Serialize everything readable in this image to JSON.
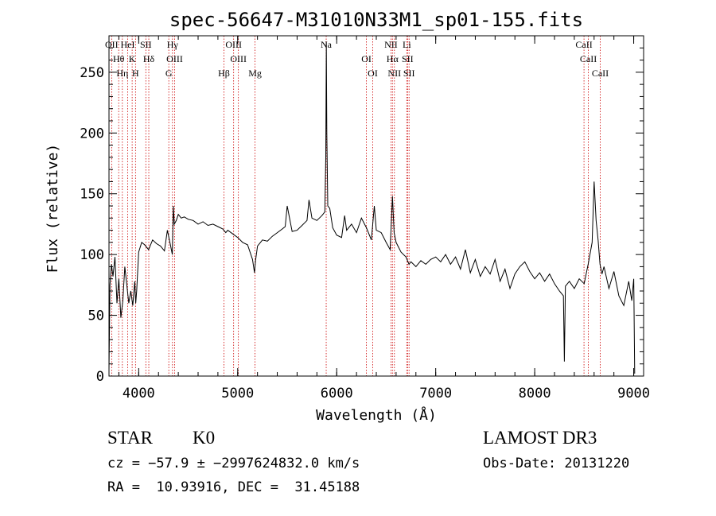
{
  "colors": {
    "spectrum": "#000000",
    "line_marker": "#cc0000",
    "axis": "#000000"
  },
  "chart_data": {
    "type": "line",
    "title": "spec-56647-M31010N33M1_sp01-155.fits",
    "xlabel": "Wavelength (Å)",
    "ylabel": "Flux (relative)",
    "xlim": [
      3700,
      9100
    ],
    "ylim": [
      0,
      280
    ],
    "x_ticks": [
      4000,
      5000,
      6000,
      7000,
      8000,
      9000
    ],
    "y_ticks": [
      0,
      50,
      100,
      150,
      200,
      250
    ],
    "series": [
      {
        "name": "flux",
        "x": [
          3700,
          3710,
          3725,
          3740,
          3760,
          3780,
          3800,
          3820,
          3840,
          3860,
          3880,
          3900,
          3920,
          3940,
          3960,
          3970,
          3980,
          4000,
          4030,
          4060,
          4100,
          4140,
          4180,
          4220,
          4260,
          4290,
          4320,
          4340,
          4350,
          4360,
          4380,
          4400,
          4430,
          4460,
          4500,
          4550,
          4600,
          4650,
          4700,
          4750,
          4800,
          4850,
          4880,
          4900,
          4950,
          5000,
          5050,
          5100,
          5150,
          5170,
          5180,
          5200,
          5250,
          5300,
          5350,
          5400,
          5450,
          5480,
          5500,
          5550,
          5600,
          5650,
          5700,
          5720,
          5750,
          5800,
          5850,
          5880,
          5890,
          5895,
          5900,
          5910,
          5930,
          5960,
          6000,
          6050,
          6080,
          6100,
          6150,
          6200,
          6250,
          6300,
          6350,
          6380,
          6400,
          6450,
          6500,
          6540,
          6563,
          6580,
          6600,
          6650,
          6700,
          6730,
          6750,
          6800,
          6850,
          6900,
          6950,
          7000,
          7050,
          7100,
          7150,
          7200,
          7250,
          7300,
          7350,
          7400,
          7450,
          7500,
          7550,
          7600,
          7650,
          7700,
          7750,
          7800,
          7850,
          7900,
          7950,
          8000,
          8050,
          8100,
          8150,
          8200,
          8250,
          8290,
          8300,
          8310,
          8350,
          8400,
          8450,
          8500,
          8540,
          8580,
          8600,
          8620,
          8640,
          8660,
          8680,
          8700,
          8750,
          8800,
          8850,
          8900,
          8950,
          8980,
          9000,
          9010
        ],
        "values": [
          5,
          75,
          92,
          82,
          98,
          60,
          80,
          48,
          62,
          90,
          75,
          60,
          70,
          58,
          78,
          60,
          70,
          102,
          110,
          108,
          104,
          112,
          109,
          107,
          103,
          120,
          108,
          100,
          140,
          125,
          128,
          133,
          130,
          131,
          129,
          128,
          125,
          127,
          124,
          125,
          123,
          121,
          118,
          120,
          117,
          114,
          110,
          108,
          96,
          85,
          95,
          107,
          112,
          111,
          115,
          118,
          121,
          123,
          140,
          119,
          120,
          124,
          128,
          145,
          130,
          128,
          132,
          135,
          180,
          275,
          200,
          140,
          138,
          122,
          116,
          114,
          132,
          120,
          125,
          118,
          130,
          122,
          112,
          140,
          120,
          118,
          110,
          104,
          148,
          118,
          110,
          102,
          98,
          92,
          94,
          90,
          95,
          92,
          96,
          98,
          94,
          100,
          92,
          98,
          88,
          104,
          85,
          96,
          82,
          90,
          84,
          96,
          78,
          88,
          72,
          84,
          90,
          94,
          86,
          80,
          85,
          78,
          84,
          76,
          70,
          66,
          12,
          74,
          78,
          72,
          80,
          76,
          92,
          110,
          160,
          128,
          112,
          92,
          84,
          90,
          72,
          86,
          66,
          58,
          78,
          62,
          80,
          2
        ],
        "color": "#000000"
      }
    ],
    "reference_lines": [
      {
        "label": "OII",
        "x": 3727
      },
      {
        "label": "Hθ",
        "x": 3798
      },
      {
        "label": "Hη",
        "x": 3835
      },
      {
        "label": "HeI",
        "x": 3889
      },
      {
        "label": "K",
        "x": 3934
      },
      {
        "label": "H",
        "x": 3968
      },
      {
        "label": "SII",
        "x": 4072
      },
      {
        "label": "Hδ",
        "x": 4102
      },
      {
        "label": "G",
        "x": 4304
      },
      {
        "label": "Hγ",
        "x": 4341
      },
      {
        "label": "OIII",
        "x": 4363
      },
      {
        "label": "Hβ",
        "x": 4861
      },
      {
        "label": "OIII",
        "x": 4959
      },
      {
        "label": "OIII",
        "x": 5007
      },
      {
        "label": "Mg",
        "x": 5175
      },
      {
        "label": "Na",
        "x": 5894
      },
      {
        "label": "OI",
        "x": 6300
      },
      {
        "label": "OI",
        "x": 6364
      },
      {
        "label": "NII",
        "x": 6548
      },
      {
        "label": "Hα",
        "x": 6563
      },
      {
        "label": "NII",
        "x": 6583
      },
      {
        "label": "Li",
        "x": 6708
      },
      {
        "label": "SII",
        "x": 6716
      },
      {
        "label": "SII",
        "x": 6731
      },
      {
        "label": "CaII",
        "x": 8498
      },
      {
        "label": "CaII",
        "x": 8542
      },
      {
        "label": "CaII",
        "x": 8662
      }
    ]
  },
  "info": {
    "class_label": "STAR",
    "subclass": "K0",
    "survey": "LAMOST DR3",
    "redshift": "cz = −57.9 ± −2997624832.0 km/s",
    "obs_date": "Obs-Date: 20131220",
    "coords": "RA =  10.93916, DEC =  31.45188"
  }
}
